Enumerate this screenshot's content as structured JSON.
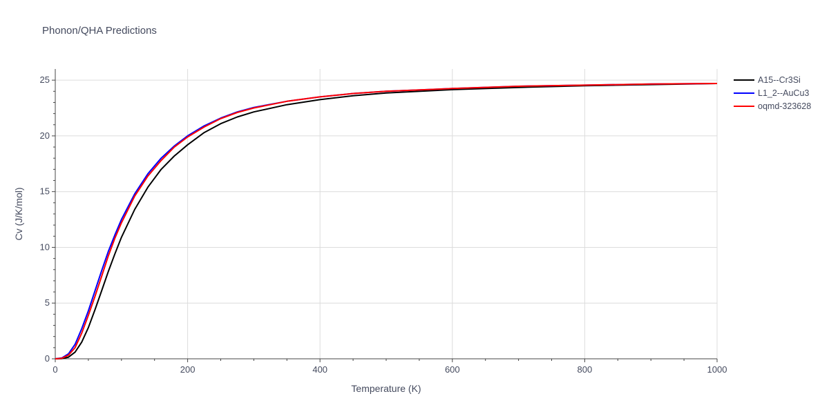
{
  "chart_data": {
    "type": "line",
    "title": "Phonon/QHA Predictions",
    "xlabel": "Temperature (K)",
    "ylabel": "Cv (J/K/mol)",
    "xlim": [
      0,
      1000
    ],
    "ylim": [
      0,
      26
    ],
    "xticks": [
      0,
      200,
      400,
      600,
      800,
      1000
    ],
    "yticks": [
      0,
      5,
      10,
      15,
      20,
      25
    ],
    "grid": true,
    "legend_position": "right",
    "series": [
      {
        "name": "A15--Cr3Si",
        "color": "#000000",
        "x": [
          0,
          10,
          20,
          30,
          40,
          50,
          60,
          70,
          80,
          90,
          100,
          120,
          140,
          160,
          180,
          200,
          225,
          250,
          275,
          300,
          350,
          400,
          450,
          500,
          600,
          700,
          800,
          900,
          1000
        ],
        "y": [
          0,
          0.02,
          0.15,
          0.6,
          1.5,
          2.8,
          4.4,
          6.1,
          7.8,
          9.4,
          10.9,
          13.4,
          15.4,
          17.0,
          18.2,
          19.2,
          20.3,
          21.1,
          21.7,
          22.15,
          22.8,
          23.25,
          23.6,
          23.85,
          24.15,
          24.35,
          24.5,
          24.6,
          24.7
        ]
      },
      {
        "name": "L1_2--AuCu3",
        "color": "#0000ff",
        "x": [
          0,
          10,
          20,
          30,
          40,
          50,
          60,
          70,
          80,
          90,
          100,
          120,
          140,
          160,
          180,
          200,
          225,
          250,
          275,
          300,
          350,
          400,
          450,
          500,
          600,
          700,
          800,
          900,
          1000
        ],
        "y": [
          0,
          0.08,
          0.45,
          1.3,
          2.7,
          4.3,
          6.1,
          7.9,
          9.6,
          11.1,
          12.5,
          14.8,
          16.6,
          18.0,
          19.1,
          20.0,
          20.9,
          21.6,
          22.15,
          22.55,
          23.1,
          23.5,
          23.8,
          24.0,
          24.25,
          24.45,
          24.55,
          24.65,
          24.7
        ]
      },
      {
        "name": "oqmd-323628",
        "color": "#ff0000",
        "x": [
          0,
          10,
          20,
          30,
          40,
          50,
          60,
          70,
          80,
          90,
          100,
          120,
          140,
          160,
          180,
          200,
          225,
          250,
          275,
          300,
          350,
          400,
          450,
          500,
          600,
          700,
          800,
          900,
          1000
        ],
        "y": [
          0,
          0.05,
          0.33,
          1.0,
          2.3,
          3.9,
          5.6,
          7.4,
          9.2,
          10.8,
          12.2,
          14.6,
          16.4,
          17.8,
          19.0,
          19.9,
          20.8,
          21.55,
          22.1,
          22.5,
          23.1,
          23.5,
          23.8,
          24.0,
          24.25,
          24.45,
          24.55,
          24.65,
          24.7
        ]
      }
    ]
  }
}
